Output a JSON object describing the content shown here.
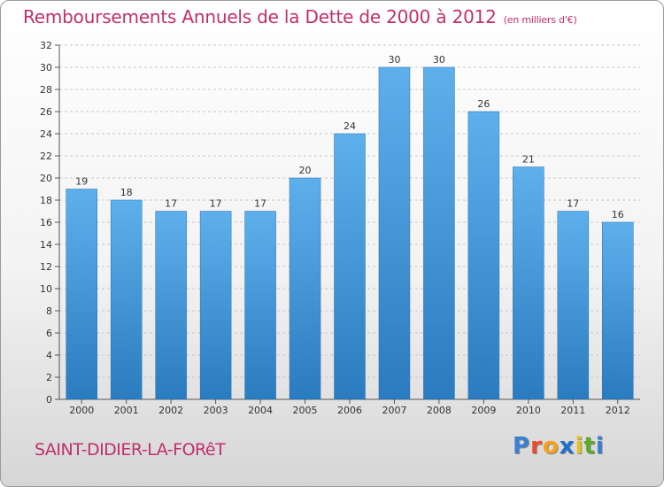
{
  "title": "Remboursements Annuels de la Dette de 2000 à 2012",
  "subtitle": "(en milliers d'€)",
  "city": "SAINT-DIDIER-LA-FORêT",
  "logo": {
    "letters": [
      "P",
      "r",
      "o",
      "x",
      "i",
      "t",
      "i"
    ],
    "colors": [
      "#3a7fd0",
      "#e94d2c",
      "#f6a21c",
      "#1f6fcc",
      "#e8c11d",
      "#5aaa2e",
      "#3a7fd0"
    ]
  },
  "colors": {
    "bar": "#3d92d8",
    "title": "#c0306a",
    "axis": "#555555",
    "grid": "#c8c8c8"
  },
  "chart_data": {
    "type": "bar",
    "categories": [
      "2000",
      "2001",
      "2002",
      "2003",
      "2004",
      "2005",
      "2006",
      "2007",
      "2008",
      "2009",
      "2010",
      "2011",
      "2012"
    ],
    "values": [
      19,
      18,
      17,
      17,
      17,
      20,
      24,
      30,
      30,
      26,
      21,
      17,
      16
    ],
    "ylim": [
      0,
      32
    ],
    "yticks": [
      0,
      2,
      4,
      6,
      8,
      10,
      12,
      14,
      16,
      18,
      20,
      22,
      24,
      26,
      28,
      30,
      32
    ],
    "grid": true,
    "data_labels": true
  }
}
